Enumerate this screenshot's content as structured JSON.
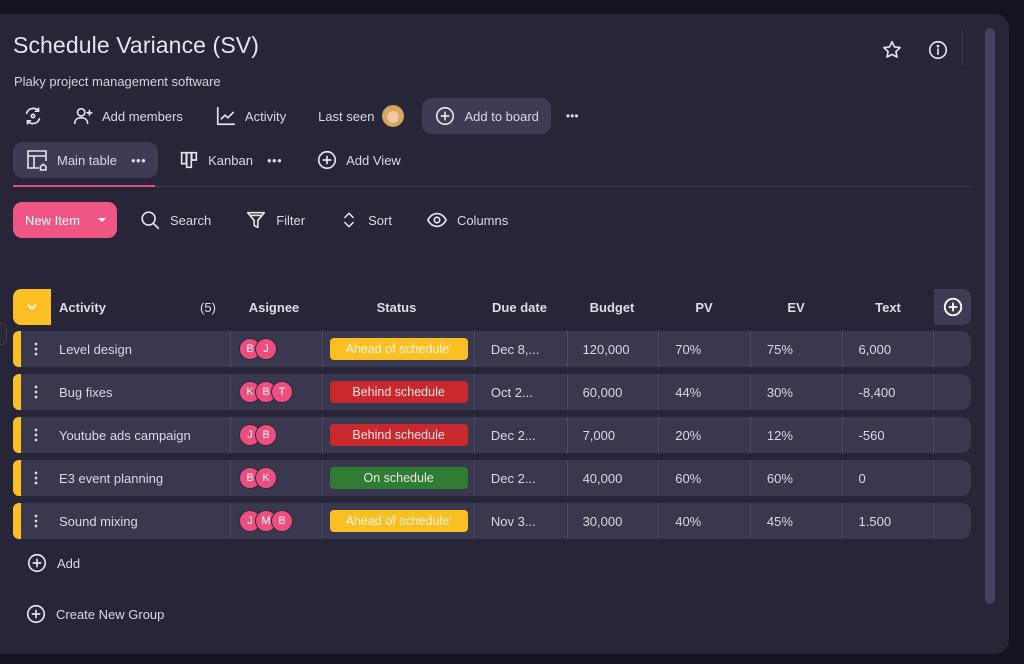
{
  "header": {
    "title": "Schedule Variance (SV)",
    "subtitle": "Plaky project management software"
  },
  "toolbar": {
    "add_members_label": "Add members",
    "activity_label": "Activity",
    "last_seen_label": "Last seen",
    "add_to_board_label": "Add to board",
    "more_label": "•••"
  },
  "views": {
    "tabs": [
      {
        "label": "Main table",
        "active": true
      },
      {
        "label": "Kanban",
        "active": false
      }
    ],
    "add_view_label": "Add View",
    "more_label": "•••"
  },
  "actions": {
    "new_item_label": "New Item",
    "search_label": "Search",
    "filter_label": "Filter",
    "sort_label": "Sort",
    "columns_label": "Columns"
  },
  "table": {
    "group_color": "#fbbf24",
    "group_count": "(5)",
    "columns": [
      "Activity",
      "Asignee",
      "Status",
      "Due date",
      "Budget",
      "PV",
      "EV",
      "Text"
    ],
    "rows": [
      {
        "activity": "Level design",
        "assignees": [
          "B",
          "J"
        ],
        "status": "Ahead of schedule'",
        "status_color": "#fbbf24",
        "due": "Dec 8,...",
        "budget": "120,000",
        "pv": "70%",
        "ev": "75%",
        "text": "6,000"
      },
      {
        "activity": "Bug fixes",
        "assignees": [
          "K",
          "B",
          "T"
        ],
        "status": "Behind schedule",
        "status_color": "#c9282d",
        "due": "Oct 2...",
        "budget": "60,000",
        "pv": "44%",
        "ev": "30%",
        "text": "-8,400"
      },
      {
        "activity": "Youtube ads campaign",
        "assignees": [
          "J",
          "B"
        ],
        "status": "Behind schedule",
        "status_color": "#c9282d",
        "due": "Dec 2...",
        "budget": "7,000",
        "pv": "20%",
        "ev": "12%",
        "text": "-560"
      },
      {
        "activity": "E3 event planning",
        "assignees": [
          "B",
          "K"
        ],
        "status": "On schedule",
        "status_color": "#2e7d32",
        "due": "Dec 2...",
        "budget": "40,000",
        "pv": "60%",
        "ev": "60%",
        "text": "0"
      },
      {
        "activity": "Sound mixing",
        "assignees": [
          "J",
          "M",
          "B"
        ],
        "status": "Ahead of schedule'",
        "status_color": "#fbbf24",
        "due": "Nov 3...",
        "budget": "30,000",
        "pv": "40%",
        "ev": "45%",
        "text": "1.500"
      }
    ],
    "add_label": "Add"
  },
  "footer": {
    "create_group_label": "Create New Group"
  },
  "colors": {
    "accent": "#ef5585",
    "panel_bg": "#272638",
    "row_bg": "#3a384f"
  }
}
